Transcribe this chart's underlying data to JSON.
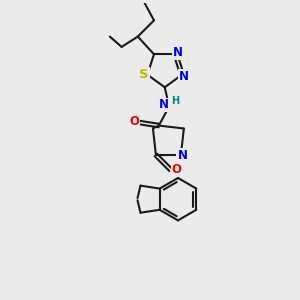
{
  "bg_color": "#ebebeb",
  "bond_color": "#1a1a1a",
  "bond_width": 1.5,
  "atom_colors": {
    "N": "#0000ee",
    "O": "#ee0000",
    "S": "#bbbb00",
    "H": "#008080",
    "C": "#1a1a1a"
  },
  "font_size": 8.5,
  "fig_width": 3.0,
  "fig_height": 3.0
}
